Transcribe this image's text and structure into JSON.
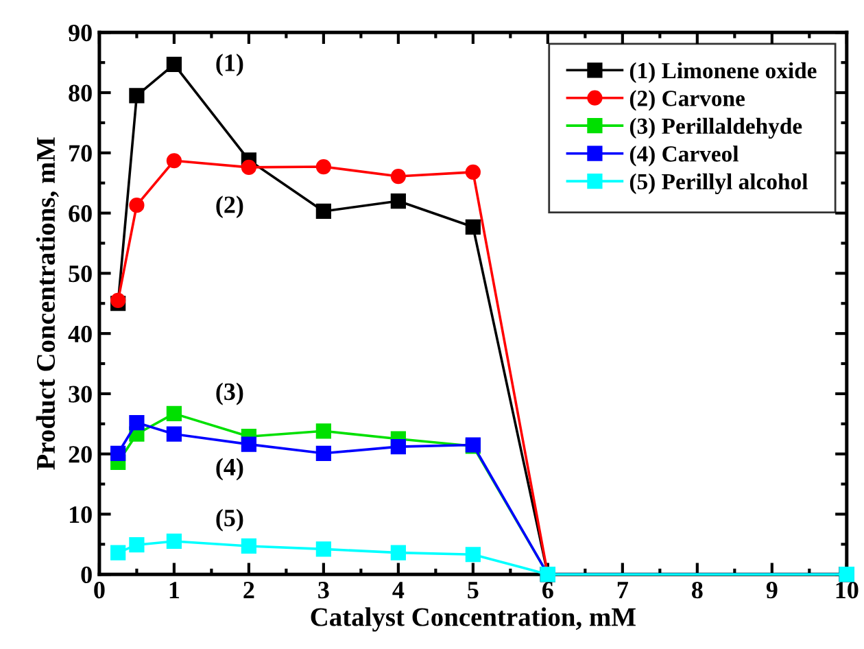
{
  "chart_data": {
    "type": "line",
    "xlabel": "Catalyst Concentration, mM",
    "ylabel": "Product Concentrations, mM",
    "x": [
      0.25,
      0.5,
      1,
      2,
      3,
      4,
      5,
      6,
      10
    ],
    "series": [
      {
        "name": "(1) Limonene oxide",
        "color": "#000000",
        "marker": "square",
        "values": [
          45,
          79.5,
          84.7,
          68.8,
          60.3,
          62,
          57.7,
          0,
          0
        ]
      },
      {
        "name": "(2) Carvone",
        "color": "#ff0000",
        "marker": "circle",
        "values": [
          45.5,
          61.3,
          68.7,
          67.6,
          67.7,
          66.1,
          66.8,
          0,
          0
        ]
      },
      {
        "name": "(3) Perillaldehyde",
        "color": "#00e000",
        "marker": "square",
        "values": [
          18.6,
          23.3,
          26.7,
          22.9,
          23.8,
          22.5,
          21.3,
          0,
          0
        ]
      },
      {
        "name": "(4) Carveol",
        "color": "#0000ff",
        "marker": "square",
        "values": [
          20.1,
          25.2,
          23.3,
          21.6,
          20.1,
          21.2,
          21.5,
          0,
          0
        ]
      },
      {
        "name": "(5) Perillyl alcohol",
        "color": "#00ffff",
        "marker": "square",
        "values": [
          3.6,
          4.9,
          5.5,
          4.7,
          4.2,
          3.6,
          3.3,
          0,
          0
        ]
      }
    ],
    "annotations": [
      "(1)",
      "(2)",
      "(3)",
      "(4)",
      "(5)"
    ],
    "xlim": [
      0,
      10
    ],
    "ylim": [
      0,
      90
    ],
    "xticks": [
      0,
      1,
      2,
      3,
      4,
      5,
      6,
      7,
      8,
      9,
      10
    ],
    "yticks": [
      0,
      10,
      20,
      30,
      40,
      50,
      60,
      70,
      80,
      90
    ],
    "grid": false,
    "legend": "top right",
    "line_style": "solid"
  }
}
